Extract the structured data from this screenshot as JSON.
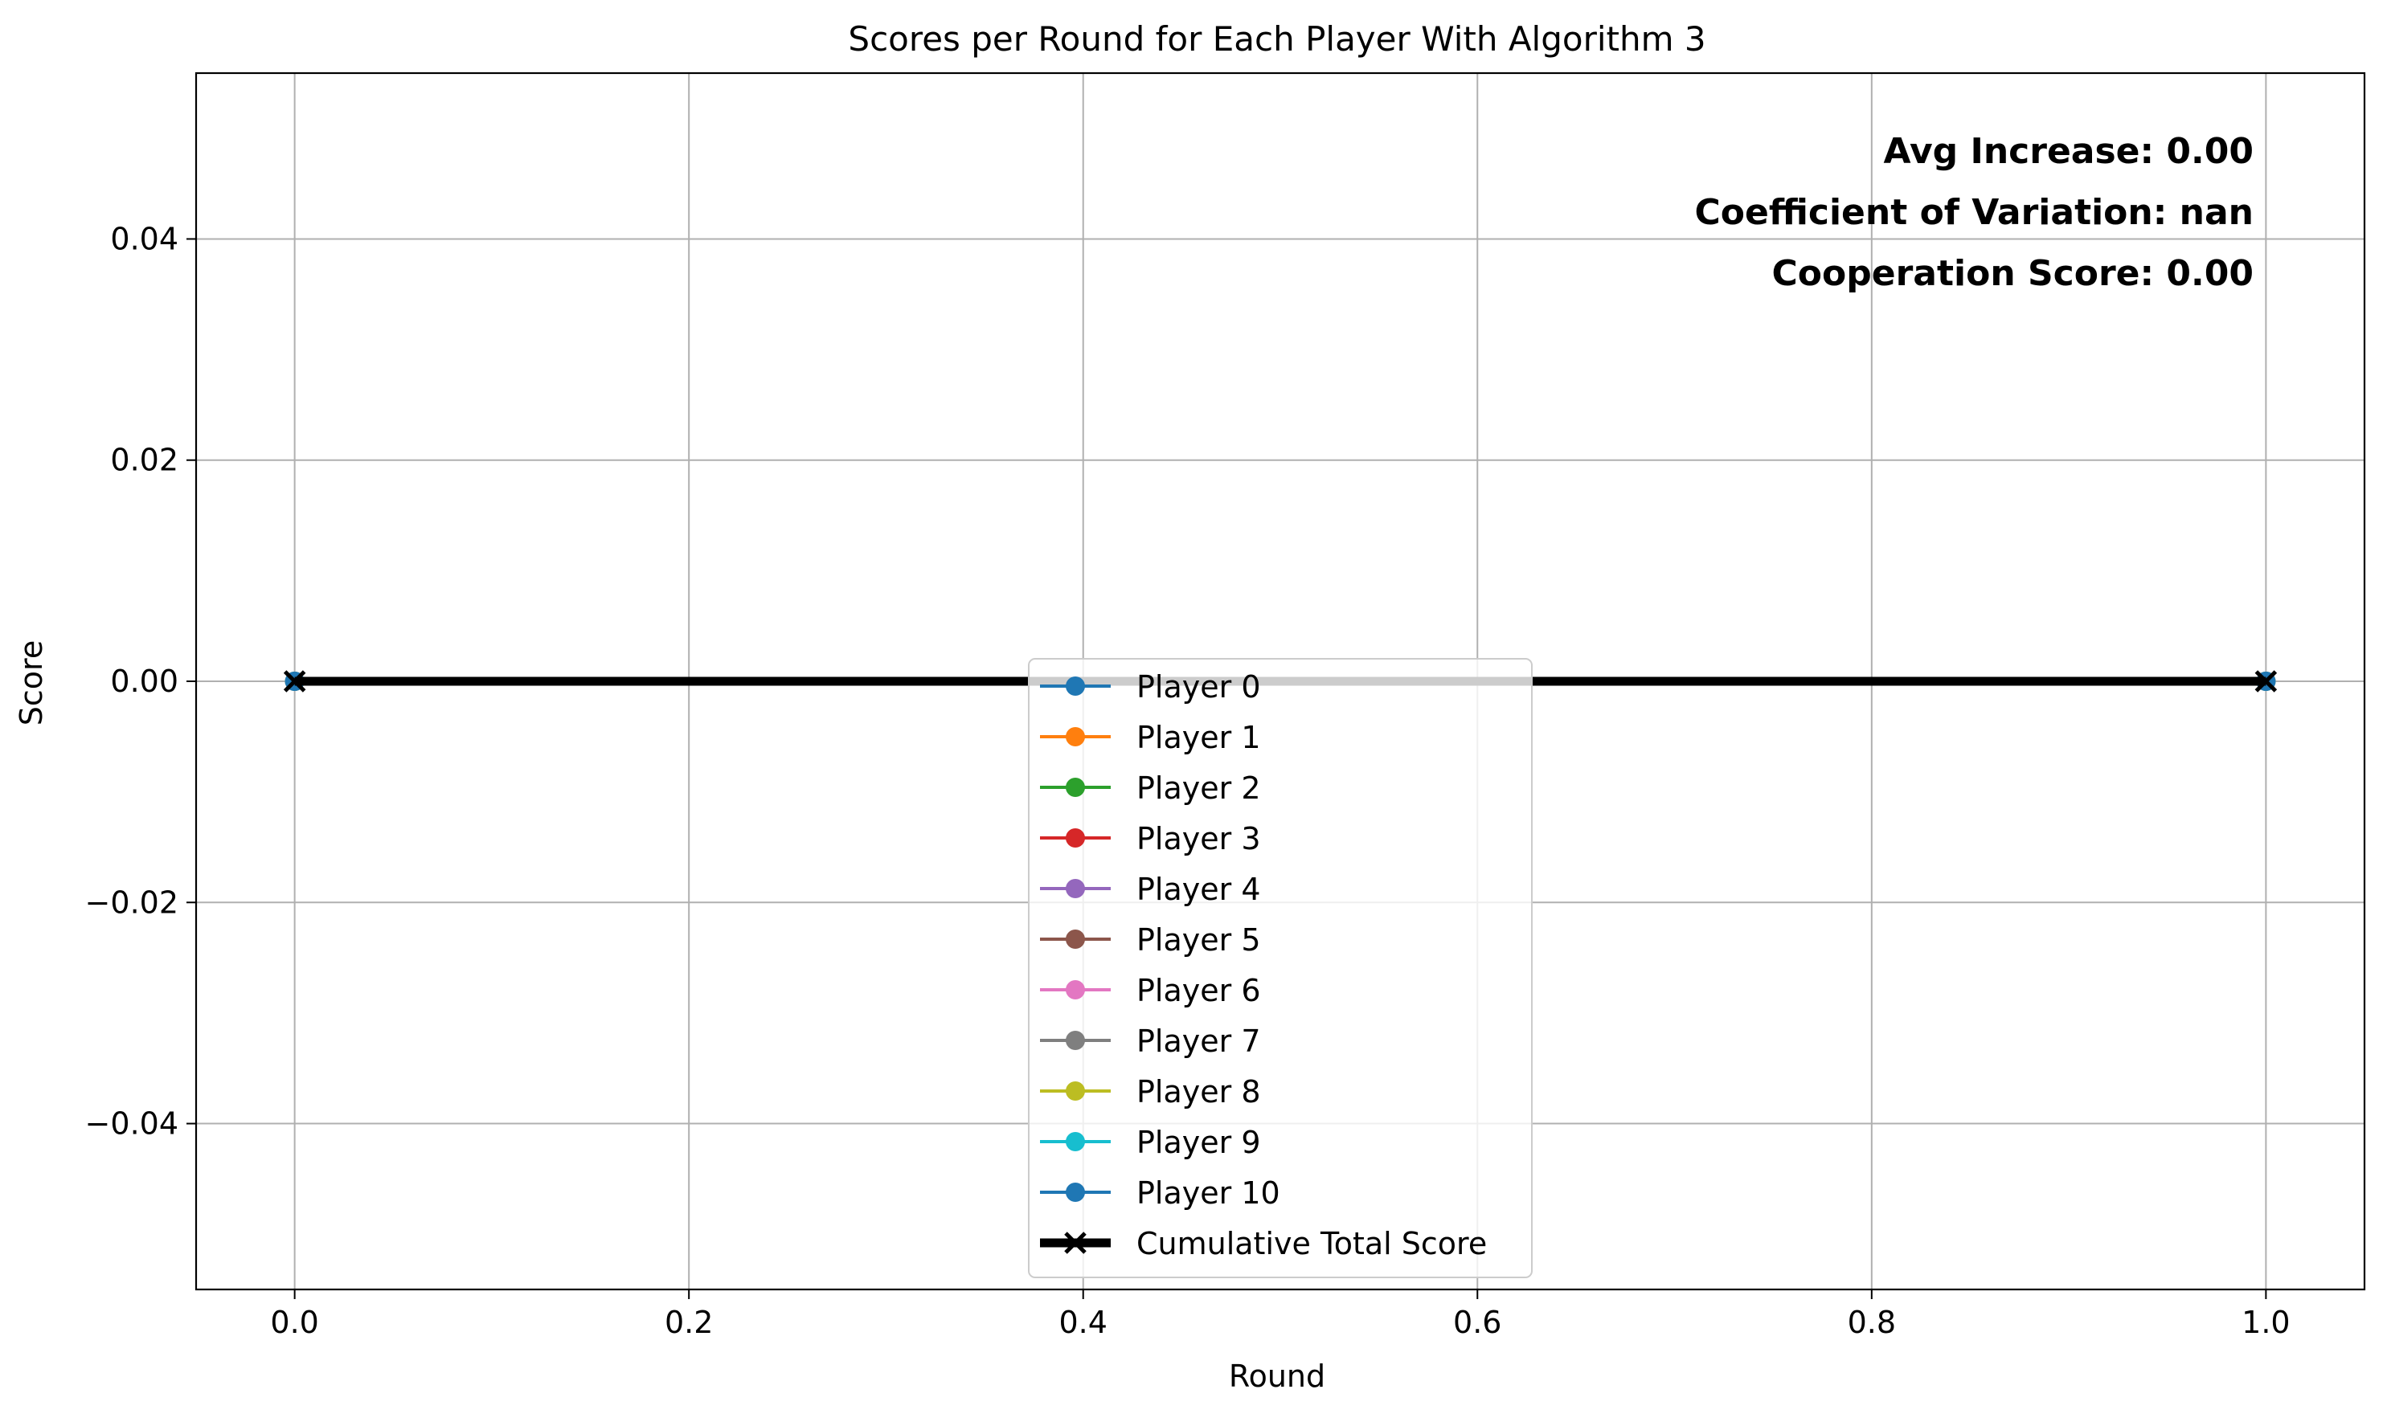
{
  "chart_data": {
    "type": "line",
    "title": "Scores per Round for Each Player With Algorithm 3",
    "xlabel": "Round",
    "ylabel": "Score",
    "xlim": [
      -0.05,
      1.05
    ],
    "ylim": [
      -0.055,
      0.055
    ],
    "xticks": [
      0.0,
      0.2,
      0.4,
      0.6,
      0.8,
      1.0
    ],
    "xtick_labels": [
      "0.0",
      "0.2",
      "0.4",
      "0.6",
      "0.8",
      "1.0"
    ],
    "yticks": [
      0.04,
      0.02,
      0.0,
      -0.02,
      -0.04
    ],
    "ytick_labels": [
      "0.04",
      "0.02",
      "0.00",
      "−0.02",
      "−0.04"
    ],
    "grid": true,
    "legend_position": "lower center",
    "x": [
      0,
      1
    ],
    "series": [
      {
        "name": "Player 0",
        "values": [
          0,
          0
        ],
        "color": "#1f77b4",
        "marker": "o"
      },
      {
        "name": "Player 1",
        "values": [
          0,
          0
        ],
        "color": "#ff7f0e",
        "marker": "o"
      },
      {
        "name": "Player 2",
        "values": [
          0,
          0
        ],
        "color": "#2ca02c",
        "marker": "o"
      },
      {
        "name": "Player 3",
        "values": [
          0,
          0
        ],
        "color": "#d62728",
        "marker": "o"
      },
      {
        "name": "Player 4",
        "values": [
          0,
          0
        ],
        "color": "#9467bd",
        "marker": "o"
      },
      {
        "name": "Player 5",
        "values": [
          0,
          0
        ],
        "color": "#8c564b",
        "marker": "o"
      },
      {
        "name": "Player 6",
        "values": [
          0,
          0
        ],
        "color": "#e377c2",
        "marker": "o"
      },
      {
        "name": "Player 7",
        "values": [
          0,
          0
        ],
        "color": "#7f7f7f",
        "marker": "o"
      },
      {
        "name": "Player 8",
        "values": [
          0,
          0
        ],
        "color": "#bcbd22",
        "marker": "o"
      },
      {
        "name": "Player 9",
        "values": [
          0,
          0
        ],
        "color": "#17becf",
        "marker": "o"
      },
      {
        "name": "Player 10",
        "values": [
          0,
          0
        ],
        "color": "#1f77b4",
        "marker": "o"
      },
      {
        "name": "Cumulative Total Score",
        "values": [
          0,
          0
        ],
        "color": "#000000",
        "marker": "x",
        "bold": true
      }
    ],
    "annotations": [
      "Avg Increase: 0.00",
      "Coefficient of Variation: nan",
      "Cooperation Score: 0.00"
    ]
  }
}
